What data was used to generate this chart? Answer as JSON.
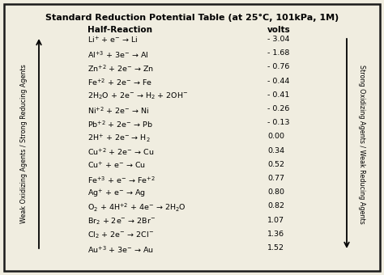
{
  "title": "Standard Reduction Potential Table (at 25°C, 101kPa, 1M)",
  "col_header_reaction": "Half-Reaction",
  "col_header_volts": "volts",
  "rows": [
    {
      "reaction": "Li$^{+}$ + e$^{-}$ → Li",
      "volts": "- 3.04"
    },
    {
      "reaction": "Al$^{+3}$ + 3e$^{-}$ → Al",
      "volts": "- 1.68"
    },
    {
      "reaction": "Zn$^{+2}$ + 2e$^{-}$ → Zn",
      "volts": "- 0.76"
    },
    {
      "reaction": "Fe$^{+2}$ + 2e$^{-}$ → Fe",
      "volts": "- 0.44"
    },
    {
      "reaction": "2H$_{2}$O + 2e$^{-}$ → H$_{2}$ + 2OH$^{-}$",
      "volts": "- 0.41"
    },
    {
      "reaction": "Ni$^{+2}$ + 2e$^{-}$ → Ni",
      "volts": "- 0.26"
    },
    {
      "reaction": "Pb$^{+2}$ + 2e$^{-}$ → Pb",
      "volts": "- 0.13"
    },
    {
      "reaction": "2H$^{+}$ + 2e$^{-}$ → H$_{2}$",
      "volts": "0.00"
    },
    {
      "reaction": "Cu$^{+2}$ + 2e$^{-}$ → Cu",
      "volts": "0.34"
    },
    {
      "reaction": "Cu$^{+}$ + e$^{-}$ → Cu",
      "volts": "0.52"
    },
    {
      "reaction": "Fe$^{+3}$ + e$^{-}$ → Fe$^{+2}$",
      "volts": "0.77"
    },
    {
      "reaction": "Ag$^{+}$ + e$^{-}$ → Ag",
      "volts": "0.80"
    },
    {
      "reaction": "O$_{2}$ + 4H$^{+2}$ + 4e$^{-}$ → 2H$_{2}$O",
      "volts": "0.82"
    },
    {
      "reaction": "Br$_{2}$ + 2e$^{-}$ → 2Br$^{-}$",
      "volts": "1.07"
    },
    {
      "reaction": "Cl$_{2}$ + 2e$^{-}$ → 2Cl$^{-}$",
      "volts": "1.36"
    },
    {
      "reaction": "Au$^{+3}$ + 3e$^{-}$ → Au",
      "volts": "1.52"
    }
  ],
  "left_label": "Weak Oxidizing Agents / Strong Reducing Agents",
  "right_label": "Strong Oxidizing Agents / Weak Reducing Agents",
  "bg_color": "#f0ede0",
  "border_color": "#1a1a1a",
  "text_color": "#000000",
  "title_fontsize": 8.0,
  "header_fontsize": 7.5,
  "row_fontsize": 6.8,
  "side_label_fontsize": 5.8
}
